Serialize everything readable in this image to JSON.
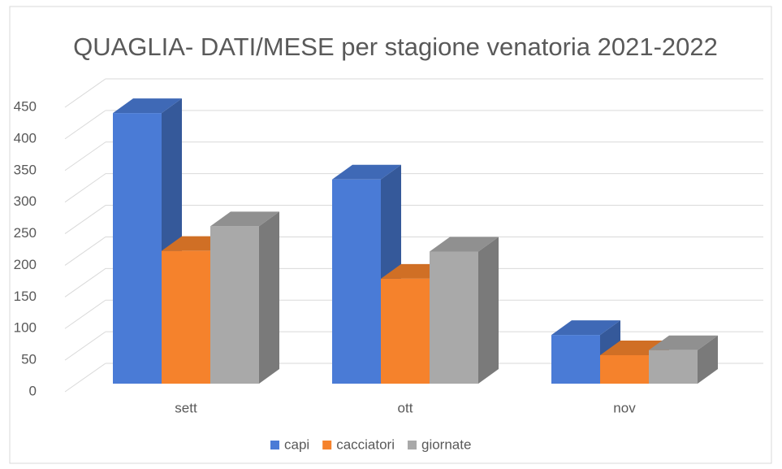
{
  "chart_data": {
    "type": "bar3d",
    "title": "QUAGLIA- DATI/MESE per stagione venatoria 2021-2022",
    "categories": [
      "sett",
      "ott",
      "nov"
    ],
    "series": [
      {
        "name": "capi",
        "color": "#4a7bd6",
        "values": [
          428,
          323,
          77
        ]
      },
      {
        "name": "cacciatori",
        "color": "#f5822c",
        "values": [
          210,
          166,
          45
        ]
      },
      {
        "name": "giornate",
        "color": "#a9a9a9",
        "values": [
          249,
          209,
          53
        ]
      }
    ],
    "ylim": [
      0,
      450
    ],
    "yticks": [
      0,
      50,
      100,
      150,
      200,
      250,
      300,
      350,
      400,
      450
    ],
    "grid": true,
    "legend": "bottom"
  }
}
